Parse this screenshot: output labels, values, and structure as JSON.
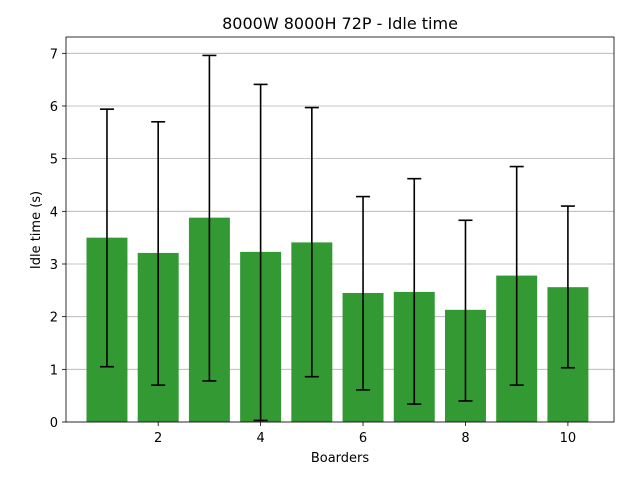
{
  "chart_data": {
    "type": "bar",
    "title": "8000W 8000H 72P - Idle time",
    "xlabel": "Boarders",
    "ylabel": "Idle time (s)",
    "x": [
      1,
      2,
      3,
      4,
      5,
      6,
      7,
      8,
      9,
      10
    ],
    "values": [
      3.5,
      3.21,
      3.88,
      3.23,
      3.41,
      2.45,
      2.47,
      2.13,
      2.78,
      2.56
    ],
    "error_low": [
      1.05,
      0.7,
      0.78,
      0.03,
      0.86,
      0.61,
      0.34,
      0.4,
      0.7,
      1.03
    ],
    "error_high": [
      5.94,
      5.7,
      6.96,
      6.41,
      5.97,
      4.28,
      4.62,
      3.83,
      4.85,
      4.1
    ],
    "xticks": [
      2,
      4,
      6,
      8,
      10
    ],
    "yticks": [
      0,
      1,
      2,
      3,
      4,
      5,
      6,
      7
    ],
    "xlim": [
      0.2,
      10.9
    ],
    "ylim": [
      0,
      7.31
    ],
    "grid": "y",
    "bar_color": "#339933",
    "errorbar_color": "#000000"
  }
}
